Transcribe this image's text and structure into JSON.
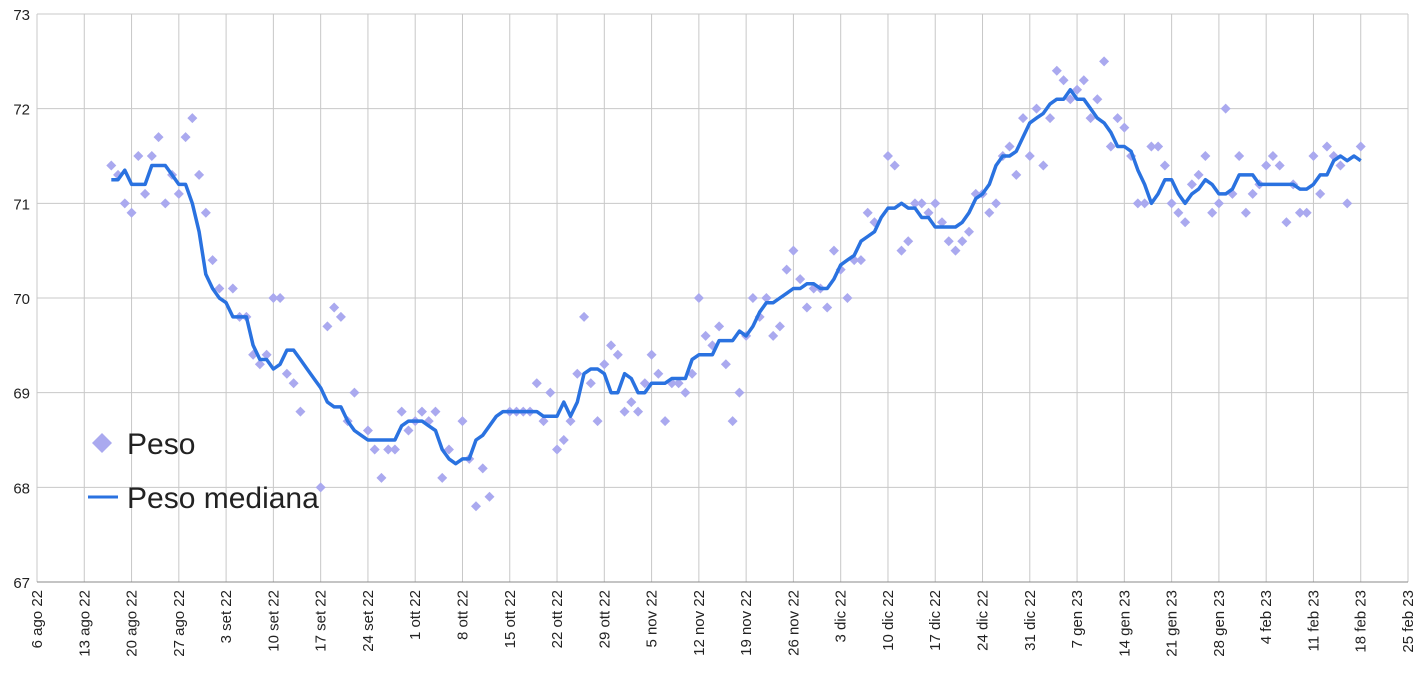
{
  "chart_data": {
    "type": "line",
    "xlim": [
      "2022-08-06",
      "2023-02-25"
    ],
    "xticks": [
      {
        "value": "2022-08-06",
        "label": "6 ago 22"
      },
      {
        "value": "2022-08-13",
        "label": "13 ago 22"
      },
      {
        "value": "2022-08-20",
        "label": "20 ago 22"
      },
      {
        "value": "2022-08-27",
        "label": "27 ago 22"
      },
      {
        "value": "2022-09-03",
        "label": "3 set 22"
      },
      {
        "value": "2022-09-10",
        "label": "10 set 22"
      },
      {
        "value": "2022-09-17",
        "label": "17 set 22"
      },
      {
        "value": "2022-09-24",
        "label": "24 set 22"
      },
      {
        "value": "2022-10-01",
        "label": "1 ott 22"
      },
      {
        "value": "2022-10-08",
        "label": "8 ott 22"
      },
      {
        "value": "2022-10-15",
        "label": "15 ott 22"
      },
      {
        "value": "2022-10-22",
        "label": "22 ott 22"
      },
      {
        "value": "2022-10-29",
        "label": "29 ott 22"
      },
      {
        "value": "2022-11-05",
        "label": "5 nov 22"
      },
      {
        "value": "2022-11-12",
        "label": "12 nov 22"
      },
      {
        "value": "2022-11-19",
        "label": "19 nov 22"
      },
      {
        "value": "2022-11-26",
        "label": "26 nov 22"
      },
      {
        "value": "2022-12-03",
        "label": "3 dic 22"
      },
      {
        "value": "2022-12-10",
        "label": "10 dic 22"
      },
      {
        "value": "2022-12-17",
        "label": "17 dic 22"
      },
      {
        "value": "2022-12-24",
        "label": "24 dic 22"
      },
      {
        "value": "2022-12-31",
        "label": "31 dic 22"
      },
      {
        "value": "2023-01-07",
        "label": "7 gen 23"
      },
      {
        "value": "2023-01-14",
        "label": "14 gen 23"
      },
      {
        "value": "2023-01-21",
        "label": "21 gen 23"
      },
      {
        "value": "2023-01-28",
        "label": "28 gen 23"
      },
      {
        "value": "2023-02-04",
        "label": "4 feb 23"
      },
      {
        "value": "2023-02-11",
        "label": "11 feb 23"
      },
      {
        "value": "2023-02-18",
        "label": "18 feb 23"
      },
      {
        "value": "2023-02-25",
        "label": "25 feb 23"
      }
    ],
    "ylim": [
      67,
      73
    ],
    "yticks": [
      67,
      68,
      69,
      70,
      71,
      72,
      73
    ],
    "grid": true,
    "legend": "lower left",
    "x": [
      "2022-08-17",
      "2022-08-18",
      "2022-08-19",
      "2022-08-20",
      "2022-08-21",
      "2022-08-22",
      "2022-08-23",
      "2022-08-24",
      "2022-08-25",
      "2022-08-26",
      "2022-08-27",
      "2022-08-28",
      "2022-08-29",
      "2022-08-30",
      "2022-08-31",
      "2022-09-01",
      "2022-09-02",
      "2022-09-03",
      "2022-09-04",
      "2022-09-05",
      "2022-09-06",
      "2022-09-07",
      "2022-09-08",
      "2022-09-09",
      "2022-09-10",
      "2022-09-11",
      "2022-09-12",
      "2022-09-13",
      "2022-09-14",
      "2022-09-15",
      "2022-09-16",
      "2022-09-17",
      "2022-09-18",
      "2022-09-19",
      "2022-09-20",
      "2022-09-21",
      "2022-09-22",
      "2022-09-23",
      "2022-09-24",
      "2022-09-25",
      "2022-09-26",
      "2022-09-27",
      "2022-09-28",
      "2022-09-29",
      "2022-09-30",
      "2022-10-01",
      "2022-10-02",
      "2022-10-03",
      "2022-10-04",
      "2022-10-05",
      "2022-10-06",
      "2022-10-07",
      "2022-10-08",
      "2022-10-09",
      "2022-10-10",
      "2022-10-11",
      "2022-10-12",
      "2022-10-13",
      "2022-10-14",
      "2022-10-15",
      "2022-10-16",
      "2022-10-17",
      "2022-10-18",
      "2022-10-19",
      "2022-10-20",
      "2022-10-21",
      "2022-10-22",
      "2022-10-23",
      "2022-10-24",
      "2022-10-25",
      "2022-10-26",
      "2022-10-27",
      "2022-10-28",
      "2022-10-29",
      "2022-10-30",
      "2022-10-31",
      "2022-11-01",
      "2022-11-02",
      "2022-11-03",
      "2022-11-04",
      "2022-11-05",
      "2022-11-06",
      "2022-11-07",
      "2022-11-08",
      "2022-11-09",
      "2022-11-10",
      "2022-11-11",
      "2022-11-12",
      "2022-11-13",
      "2022-11-14",
      "2022-11-15",
      "2022-11-16",
      "2022-11-17",
      "2022-11-18",
      "2022-11-19",
      "2022-11-20",
      "2022-11-21",
      "2022-11-22",
      "2022-11-23",
      "2022-11-24",
      "2022-11-25",
      "2022-11-26",
      "2022-11-27",
      "2022-11-28",
      "2022-11-29",
      "2022-11-30",
      "2022-12-01",
      "2022-12-02",
      "2022-12-03",
      "2022-12-04",
      "2022-12-05",
      "2022-12-06",
      "2022-12-07",
      "2022-12-08",
      "2022-12-09",
      "2022-12-10",
      "2022-12-11",
      "2022-12-12",
      "2022-12-13",
      "2022-12-14",
      "2022-12-15",
      "2022-12-16",
      "2022-12-17",
      "2022-12-18",
      "2022-12-19",
      "2022-12-20",
      "2022-12-21",
      "2022-12-22",
      "2022-12-23",
      "2022-12-24",
      "2022-12-25",
      "2022-12-26",
      "2022-12-27",
      "2022-12-28",
      "2022-12-29",
      "2022-12-30",
      "2022-12-31",
      "2023-01-01",
      "2023-01-02",
      "2023-01-03",
      "2023-01-04",
      "2023-01-05",
      "2023-01-06",
      "2023-01-07",
      "2023-01-08",
      "2023-01-09",
      "2023-01-10",
      "2023-01-11",
      "2023-01-12",
      "2023-01-13",
      "2023-01-14",
      "2023-01-15",
      "2023-01-16",
      "2023-01-17",
      "2023-01-18",
      "2023-01-19",
      "2023-01-20",
      "2023-01-21",
      "2023-01-22",
      "2023-01-23",
      "2023-01-24",
      "2023-01-25",
      "2023-01-26",
      "2023-01-27",
      "2023-01-28",
      "2023-01-29",
      "2023-01-30",
      "2023-01-31",
      "2023-02-01",
      "2023-02-02",
      "2023-02-03",
      "2023-02-04",
      "2023-02-05",
      "2023-02-06",
      "2023-02-07",
      "2023-02-08",
      "2023-02-09",
      "2023-02-10",
      "2023-02-11",
      "2023-02-12",
      "2023-02-13",
      "2023-02-14",
      "2023-02-15",
      "2023-02-16",
      "2023-02-17",
      "2023-02-18"
    ],
    "series": [
      {
        "name": "Peso",
        "kind": "scatter",
        "color": "#aaa9ef",
        "values": [
          71.4,
          71.3,
          71.0,
          70.9,
          71.5,
          71.1,
          71.5,
          71.7,
          71.0,
          71.3,
          71.1,
          71.7,
          71.9,
          71.3,
          70.9,
          70.4,
          70.1,
          null,
          70.1,
          69.8,
          69.8,
          69.4,
          69.3,
          69.4,
          70.0,
          70.0,
          69.2,
          69.1,
          68.8,
          null,
          null,
          68.0,
          69.7,
          69.9,
          69.8,
          68.7,
          69.0,
          null,
          68.6,
          68.4,
          68.1,
          68.4,
          68.4,
          68.8,
          68.6,
          68.7,
          68.8,
          68.7,
          68.8,
          68.1,
          68.4,
          null,
          68.7,
          68.3,
          67.8,
          68.2,
          67.9,
          null,
          null,
          68.8,
          68.8,
          68.8,
          68.8,
          69.1,
          68.7,
          69.0,
          68.4,
          68.5,
          68.7,
          69.2,
          69.8,
          69.1,
          68.7,
          69.3,
          69.5,
          69.4,
          68.8,
          68.9,
          68.8,
          69.1,
          69.4,
          69.2,
          68.7,
          69.1,
          69.1,
          69.0,
          69.2,
          70.0,
          69.6,
          69.5,
          69.7,
          69.3,
          68.7,
          69.0,
          69.6,
          70.0,
          69.8,
          70.0,
          69.6,
          69.7,
          70.3,
          70.5,
          70.2,
          69.9,
          70.1,
          70.1,
          69.9,
          70.5,
          70.3,
          70.0,
          70.4,
          70.4,
          70.9,
          70.8,
          null,
          71.5,
          71.4,
          70.5,
          70.6,
          71.0,
          71.0,
          70.9,
          71.0,
          70.8,
          70.6,
          70.5,
          70.6,
          70.7,
          71.1,
          71.1,
          70.9,
          71.0,
          71.5,
          71.6,
          71.3,
          71.9,
          71.5,
          72.0,
          71.4,
          71.9,
          72.4,
          72.3,
          72.1,
          72.2,
          72.3,
          71.9,
          72.1,
          72.5,
          71.6,
          71.9,
          71.8,
          71.5,
          71.0,
          71.0,
          71.6,
          71.6,
          71.4,
          71.0,
          70.9,
          70.8,
          71.2,
          71.3,
          71.5,
          70.9,
          71.0,
          72.0,
          71.1,
          71.5,
          70.9,
          71.1,
          71.2,
          71.4,
          71.5,
          71.4,
          70.8,
          71.2,
          70.9,
          70.9,
          71.5,
          71.1,
          71.6,
          71.5,
          71.4,
          71.0,
          null,
          71.6
        ]
      },
      {
        "name": "Peso mediana",
        "kind": "line",
        "color": "#2a72e0",
        "values": [
          71.25,
          71.25,
          71.35,
          71.2,
          71.2,
          71.2,
          71.4,
          71.4,
          71.4,
          71.3,
          71.2,
          71.2,
          71.0,
          70.7,
          70.25,
          70.1,
          70.0,
          69.95,
          69.8,
          69.8,
          69.8,
          69.5,
          69.35,
          69.35,
          69.25,
          69.3,
          69.45,
          69.45,
          69.35,
          69.25,
          69.15,
          69.05,
          68.9,
          68.85,
          68.85,
          68.7,
          68.6,
          68.55,
          68.5,
          68.5,
          68.5,
          68.5,
          68.5,
          68.65,
          68.7,
          68.7,
          68.7,
          68.65,
          68.6,
          68.4,
          68.3,
          68.25,
          68.3,
          68.3,
          68.5,
          68.55,
          68.65,
          68.75,
          68.8,
          68.8,
          68.8,
          68.8,
          68.8,
          68.8,
          68.75,
          68.75,
          68.75,
          68.9,
          68.75,
          68.9,
          69.2,
          69.25,
          69.25,
          69.2,
          69.0,
          69.0,
          69.2,
          69.15,
          69.0,
          69.0,
          69.1,
          69.1,
          69.1,
          69.15,
          69.15,
          69.15,
          69.35,
          69.4,
          69.4,
          69.4,
          69.55,
          69.55,
          69.55,
          69.65,
          69.6,
          69.7,
          69.85,
          69.95,
          69.95,
          70.0,
          70.05,
          70.1,
          70.1,
          70.15,
          70.15,
          70.1,
          70.1,
          70.2,
          70.35,
          70.4,
          70.45,
          70.6,
          70.65,
          70.7,
          70.85,
          70.95,
          70.95,
          71.0,
          70.95,
          70.95,
          70.85,
          70.85,
          70.75,
          70.75,
          70.75,
          70.75,
          70.8,
          70.9,
          71.05,
          71.1,
          71.2,
          71.4,
          71.5,
          71.5,
          71.55,
          71.7,
          71.85,
          71.9,
          71.95,
          72.05,
          72.1,
          72.1,
          72.2,
          72.1,
          72.1,
          72.0,
          71.9,
          71.85,
          71.75,
          71.6,
          71.6,
          71.55,
          71.35,
          71.2,
          71.0,
          71.1,
          71.25,
          71.25,
          71.1,
          71.0,
          71.1,
          71.15,
          71.25,
          71.2,
          71.1,
          71.1,
          71.15,
          71.3,
          71.3,
          71.3,
          71.2,
          71.2,
          71.2,
          71.2,
          71.2,
          71.2,
          71.15,
          71.15,
          71.2,
          71.3,
          71.3,
          71.45,
          71.5,
          71.45,
          71.5,
          71.45
        ]
      }
    ]
  }
}
